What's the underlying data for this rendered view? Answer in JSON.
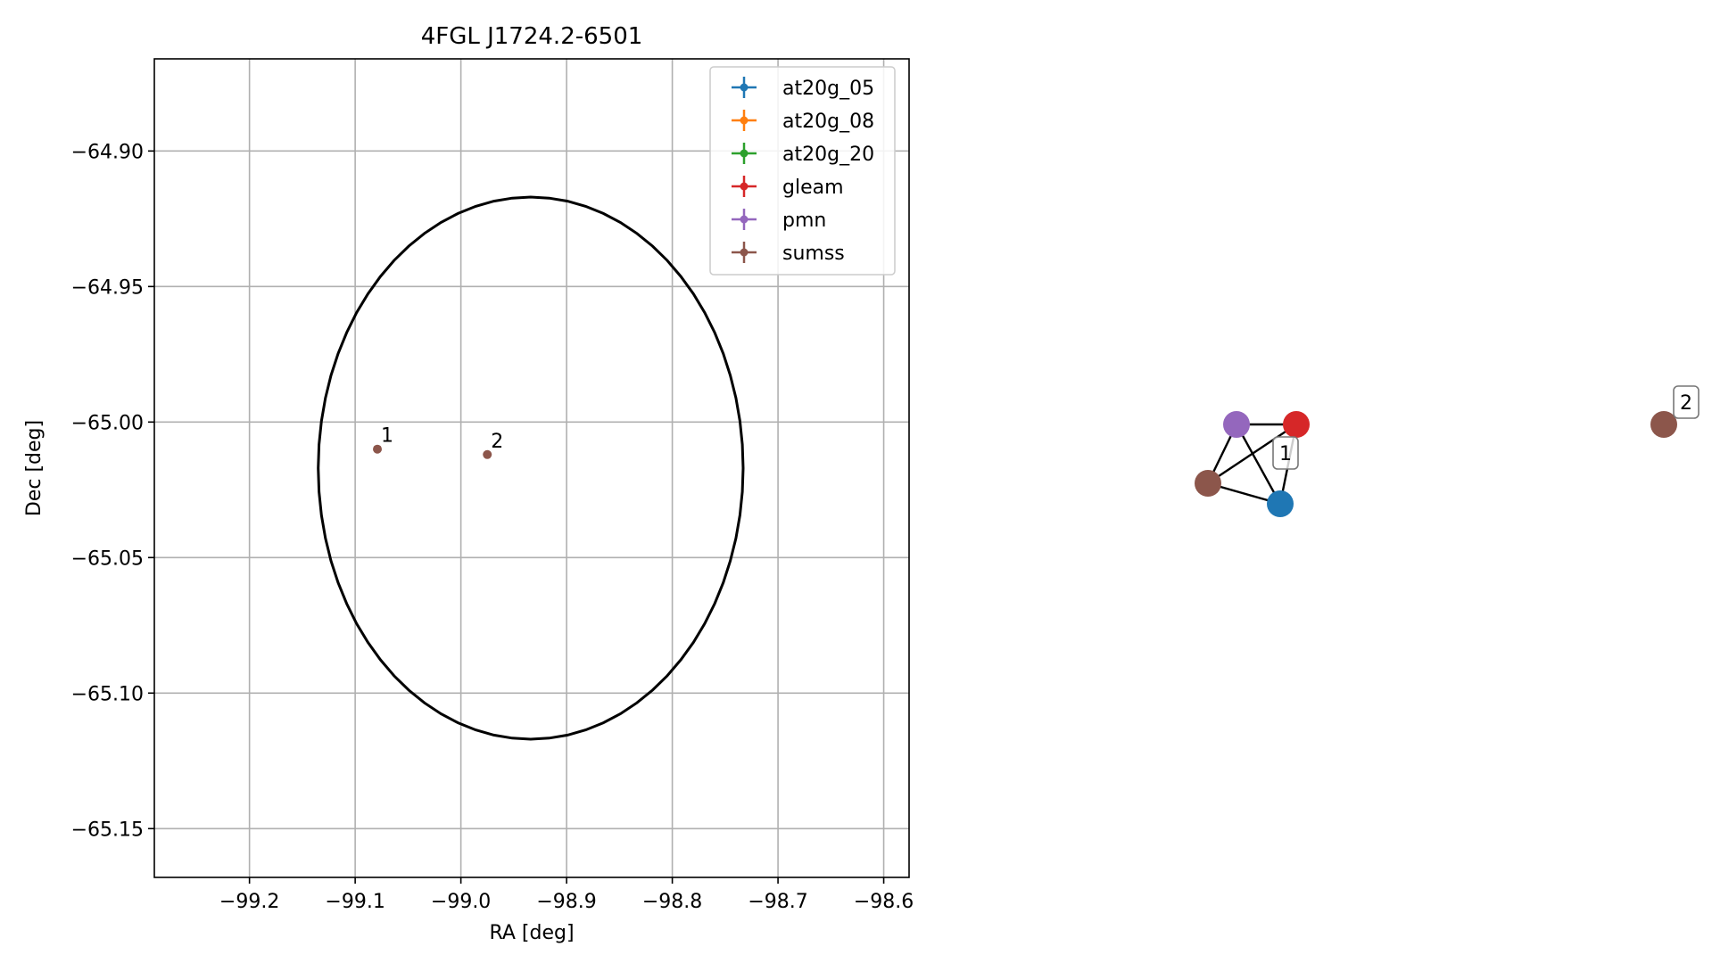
{
  "chart_data": [
    {
      "type": "scatter",
      "title": "4FGL J1724.2-6501",
      "xlabel": "RA [deg]",
      "ylabel": "Dec [deg]",
      "xlim": [
        -99.29,
        -98.576
      ],
      "ylim": [
        -65.168,
        -64.866
      ],
      "xticks": [
        -99.2,
        -99.1,
        -99.0,
        -98.9,
        -98.8,
        -98.7,
        -98.6
      ],
      "xtick_labels": [
        "−99.2",
        "−99.1",
        "−99.0",
        "−98.9",
        "−98.8",
        "−98.7",
        "−98.6"
      ],
      "yticks": [
        -64.9,
        -64.95,
        -65.0,
        -65.05,
        -65.1,
        -65.15
      ],
      "ytick_labels": [
        "−64.90",
        "−64.95",
        "−65.00",
        "−65.05",
        "−65.10",
        "−65.15"
      ],
      "grid": true,
      "legend_position": "upper right",
      "series": [
        {
          "name": "at20g_05",
          "color": "#1f77b4",
          "points": []
        },
        {
          "name": "at20g_08",
          "color": "#ff7f0e",
          "points": []
        },
        {
          "name": "at20g_20",
          "color": "#2ca02c",
          "points": []
        },
        {
          "name": "gleam",
          "color": "#d62728",
          "points": []
        },
        {
          "name": "pmn",
          "color": "#9467bd",
          "points": []
        },
        {
          "name": "sumss",
          "color": "#8c564b",
          "points": [
            {
              "x": -99.079,
              "y": -65.01,
              "label": "1"
            },
            {
              "x": -98.975,
              "y": -65.012,
              "label": "2"
            }
          ]
        }
      ],
      "ellipse": {
        "center": [
          -98.934,
          -65.017
        ],
        "semi_axis_x_deg": 0.201,
        "semi_axis_y_deg": 0.1,
        "color": "#000000"
      }
    },
    {
      "type": "network",
      "nodes": [
        {
          "id": "pmn",
          "color": "#9467bd"
        },
        {
          "id": "gleam",
          "color": "#d62728"
        },
        {
          "id": "sumss_1",
          "color": "#8c564b"
        },
        {
          "id": "at20g_05",
          "color": "#1f77b4"
        },
        {
          "id": "sumss_2",
          "color": "#8c564b"
        }
      ],
      "edges": [
        [
          "pmn",
          "gleam"
        ],
        [
          "pmn",
          "sumss_1"
        ],
        [
          "pmn",
          "at20g_05"
        ],
        [
          "gleam",
          "sumss_1"
        ],
        [
          "gleam",
          "at20g_05"
        ],
        [
          "sumss_1",
          "at20g_05"
        ]
      ],
      "cluster_labels": [
        "1",
        "2"
      ]
    }
  ]
}
